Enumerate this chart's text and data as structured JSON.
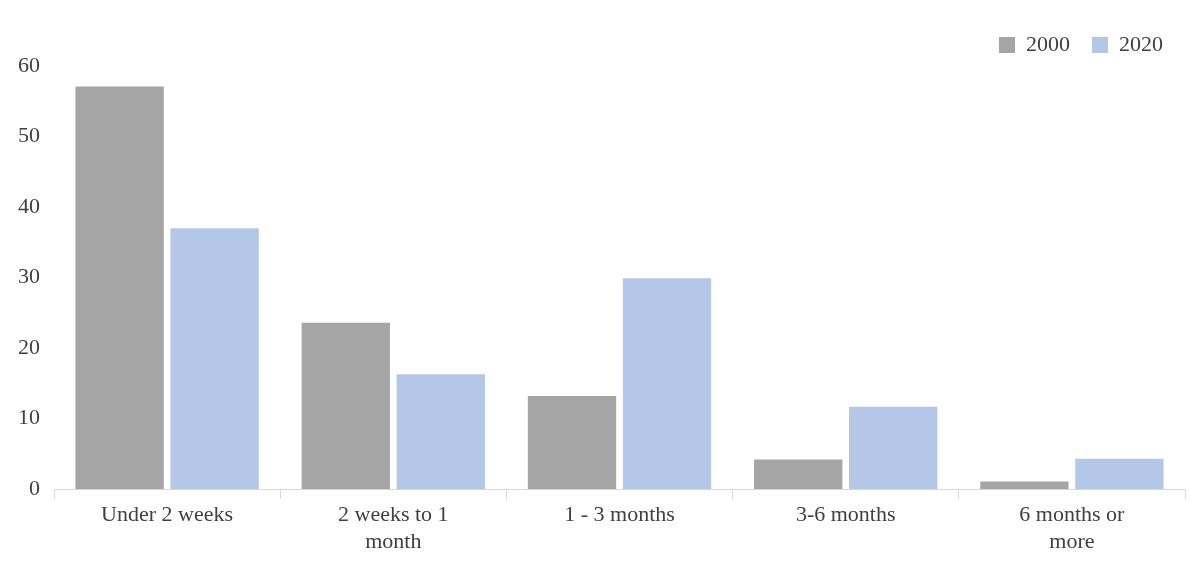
{
  "chart_data": {
    "type": "bar",
    "categories": [
      "Under 2 weeks",
      "2 weeks to 1 month",
      "1 - 3 months",
      "3-6 months",
      "6 months or more"
    ],
    "series": [
      {
        "name": "2000",
        "color": "#a5a5a5",
        "values": [
          57.1,
          23.6,
          13.2,
          4.2,
          1.1
        ]
      },
      {
        "name": "2020",
        "color": "#b4c7e7",
        "values": [
          37.0,
          16.3,
          29.9,
          11.7,
          4.3
        ]
      }
    ],
    "ylim": [
      0,
      60
    ],
    "yticks": [
      0,
      10,
      20,
      30,
      40,
      50,
      60
    ],
    "grid": false,
    "legend": "top right"
  }
}
